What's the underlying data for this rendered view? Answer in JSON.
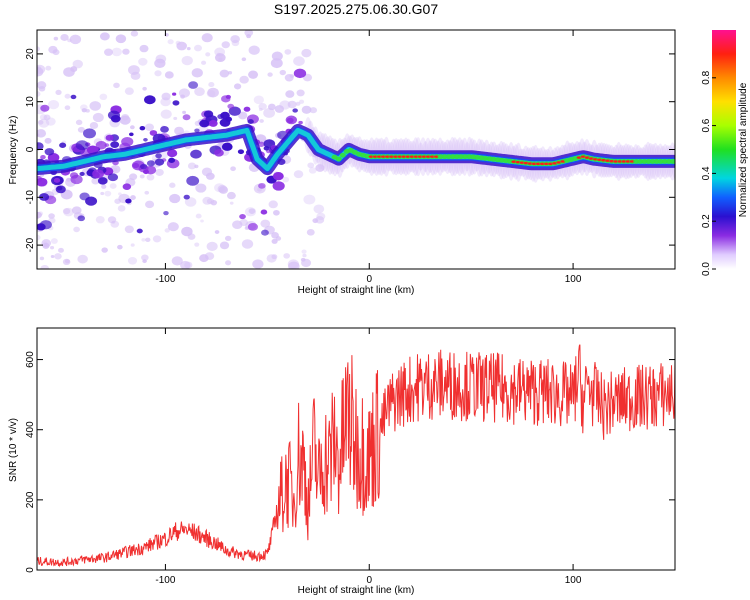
{
  "title": "S197.2025.275.06.30.G07",
  "colors": {
    "snr_line": "#f03030",
    "blob_faint": "#d6c0f6",
    "blob_purple": "#8a2be2",
    "blob_indigo": "#3a10c8",
    "blob_blue": "#1a4af0",
    "blob_cyan": "#13d6d6",
    "blob_green": "#35e035",
    "blob_red": "#ff1a1a"
  },
  "chart_data": [
    {
      "type": "heatmap",
      "title": "S197.2025.275.06.30.G07",
      "xlabel": "Height of straight line (km)",
      "ylabel": "Frequency (Hz)",
      "xlim": [
        -163,
        150
      ],
      "ylim": [
        -25,
        25
      ],
      "x_ticks": [
        -100,
        0,
        100
      ],
      "x_tick_labels": [
        "-100",
        "0",
        "100"
      ],
      "y_ticks": [
        -20,
        -10,
        0,
        10,
        20
      ],
      "y_tick_labels": [
        "-20",
        "-10",
        "0",
        "10",
        "20"
      ],
      "colorbar": {
        "label": "Normalized spectral amplitude",
        "range": [
          0,
          1
        ],
        "ticks": [
          0,
          0.2,
          0.4,
          0.6,
          0.8
        ],
        "tick_labels": [
          "0.0",
          "0.2",
          "0.4",
          "0.6",
          "0.8"
        ]
      },
      "ridge": {
        "x": [
          -163,
          -150,
          -140,
          -130,
          -120,
          -110,
          -100,
          -90,
          -80,
          -70,
          -60,
          -55,
          -50,
          -45,
          -40,
          -35,
          -30,
          -25,
          -20,
          -15,
          -10,
          -5,
          0,
          10,
          20,
          30,
          40,
          50,
          60,
          70,
          80,
          90,
          100,
          105,
          110,
          120,
          130,
          140,
          150
        ],
        "y": [
          -4,
          -3.5,
          -2.5,
          -1.5,
          -1,
          0,
          1,
          2,
          2.5,
          3,
          4,
          -2,
          -4,
          -1,
          1.5,
          4,
          3,
          0,
          -1,
          -2,
          0,
          -1,
          -1.5,
          -1.5,
          -1.5,
          -1.5,
          -1.5,
          -1.5,
          -2,
          -2.5,
          -3,
          -3,
          -2,
          -1.5,
          -2,
          -2.5,
          -2.5,
          -2.5,
          -2.5
        ],
        "amplitude": [
          0.25,
          0.3,
          0.35,
          0.4,
          0.35,
          0.4,
          0.35,
          0.4,
          0.35,
          0.4,
          0.45,
          0.45,
          0.4,
          0.4,
          0.35,
          0.3,
          0.45,
          0.5,
          0.5,
          0.6,
          0.7,
          0.6,
          0.8,
          0.9,
          0.95,
          0.9,
          0.7,
          0.6,
          0.7,
          0.8,
          0.9,
          0.9,
          0.75,
          0.9,
          0.8,
          0.85,
          0.8,
          0.7,
          0.6
        ]
      }
    },
    {
      "type": "line",
      "xlabel": "Height of straight line (km)",
      "ylabel": "SNR (10 * v/v)",
      "xlim": [
        -163,
        150
      ],
      "ylim": [
        0,
        690
      ],
      "x_ticks": [
        -100,
        0,
        100
      ],
      "x_tick_labels": [
        "-100",
        "0",
        "100"
      ],
      "y_ticks": [
        0,
        200,
        400,
        600
      ],
      "y_tick_labels": [
        "0",
        "200",
        "400",
        "600"
      ],
      "series": [
        {
          "name": "SNR",
          "x": [
            -163,
            -150,
            -140,
            -130,
            -120,
            -110,
            -100,
            -95,
            -90,
            -85,
            -80,
            -75,
            -70,
            -60,
            -55,
            -50,
            -48,
            -45,
            -42,
            -40,
            -37,
            -35,
            -32,
            -30,
            -27,
            -25,
            -22,
            -20,
            -17,
            -15,
            -12,
            -10,
            -8,
            -5,
            -2,
            0,
            3,
            5,
            8,
            10,
            15,
            20,
            25,
            30,
            40,
            50,
            60,
            70,
            80,
            90,
            95,
            100,
            103,
            105,
            107,
            110,
            112,
            115,
            120,
            130,
            140,
            150
          ],
          "y": [
            25,
            22,
            30,
            35,
            50,
            65,
            90,
            110,
            115,
            105,
            90,
            75,
            55,
            42,
            40,
            45,
            90,
            180,
            230,
            260,
            200,
            330,
            300,
            180,
            350,
            250,
            330,
            300,
            370,
            300,
            400,
            450,
            380,
            350,
            340,
            320,
            380,
            400,
            440,
            470,
            500,
            515,
            525,
            530,
            530,
            525,
            520,
            515,
            510,
            505,
            500,
            490,
            560,
            470,
            530,
            500,
            490,
            460,
            480,
            490,
            495,
            505
          ],
          "color": "#f03030"
        }
      ]
    }
  ]
}
